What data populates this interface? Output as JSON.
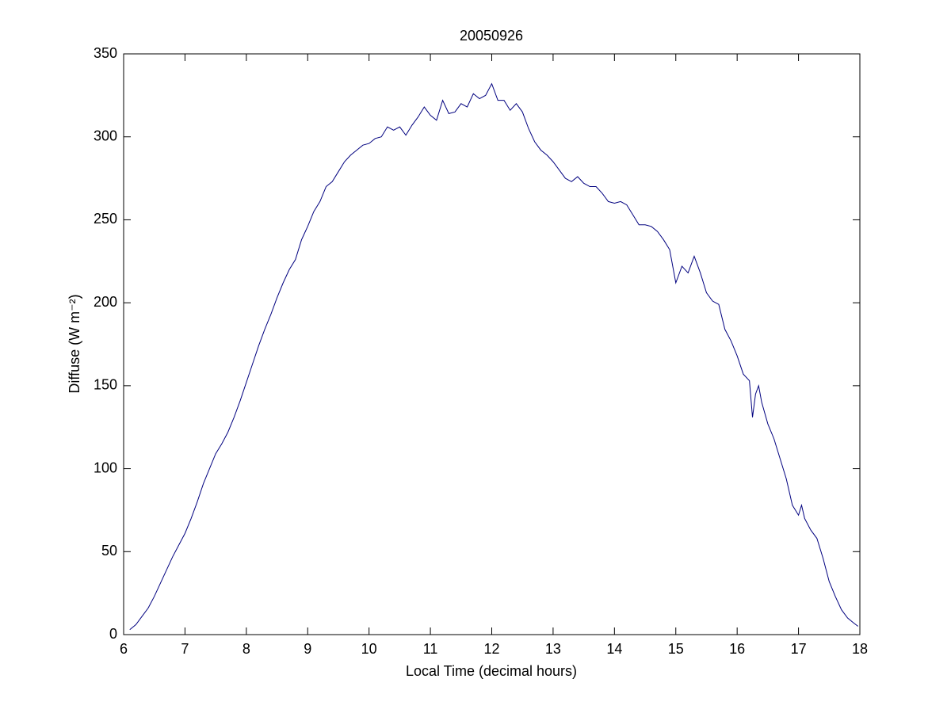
{
  "chart_data": {
    "type": "line",
    "title": "20050926",
    "xlabel": "Local Time (decimal hours)",
    "ylabel": "Diffuse (W m⁻²)",
    "xlim": [
      6,
      18
    ],
    "ylim": [
      0,
      350
    ],
    "xticks": [
      6,
      7,
      8,
      9,
      10,
      11,
      12,
      13,
      14,
      15,
      16,
      17,
      18
    ],
    "yticks": [
      0,
      50,
      100,
      150,
      200,
      250,
      300,
      350
    ],
    "grid": false,
    "series": [
      {
        "color": "#00007f",
        "x": [
          6.1,
          6.2,
          6.3,
          6.4,
          6.5,
          6.6,
          6.7,
          6.8,
          6.9,
          7.0,
          7.1,
          7.2,
          7.3,
          7.4,
          7.5,
          7.6,
          7.7,
          7.8,
          7.9,
          8.0,
          8.1,
          8.2,
          8.3,
          8.4,
          8.5,
          8.6,
          8.7,
          8.8,
          8.9,
          9.0,
          9.1,
          9.2,
          9.3,
          9.4,
          9.5,
          9.6,
          9.7,
          9.8,
          9.9,
          10.0,
          10.1,
          10.2,
          10.3,
          10.4,
          10.5,
          10.6,
          10.7,
          10.8,
          10.9,
          11.0,
          11.1,
          11.2,
          11.3,
          11.4,
          11.5,
          11.6,
          11.7,
          11.8,
          11.9,
          12.0,
          12.1,
          12.2,
          12.3,
          12.4,
          12.5,
          12.6,
          12.7,
          12.8,
          12.9,
          13.0,
          13.1,
          13.2,
          13.3,
          13.4,
          13.5,
          13.6,
          13.7,
          13.8,
          13.9,
          14.0,
          14.1,
          14.2,
          14.3,
          14.4,
          14.5,
          14.6,
          14.7,
          14.8,
          14.9,
          15.0,
          15.1,
          15.2,
          15.3,
          15.4,
          15.5,
          15.6,
          15.7,
          15.8,
          15.9,
          16.0,
          16.1,
          16.2,
          16.25,
          16.3,
          16.35,
          16.4,
          16.5,
          16.6,
          16.7,
          16.8,
          16.9,
          17.0,
          17.05,
          17.1,
          17.2,
          17.3,
          17.4,
          17.5,
          17.6,
          17.7,
          17.8,
          17.9,
          17.97
        ],
        "values": [
          3,
          6,
          11,
          16,
          23,
          31,
          39,
          47,
          54,
          61,
          70,
          80,
          91,
          100,
          109,
          115,
          122,
          131,
          141,
          152,
          163,
          174,
          184,
          193,
          203,
          212,
          220,
          226,
          238,
          246,
          255,
          261,
          270,
          273,
          279,
          285,
          289,
          292,
          295,
          296,
          299,
          300,
          306,
          304,
          306,
          301,
          307,
          312,
          318,
          313,
          310,
          322,
          314,
          315,
          320,
          318,
          326,
          323,
          325,
          332,
          322,
          322,
          316,
          320,
          315,
          305,
          297,
          292,
          289,
          285,
          280,
          275,
          273,
          276,
          272,
          270,
          270,
          266,
          261,
          260,
          261,
          259,
          253,
          247,
          247,
          246,
          243,
          238,
          232,
          212,
          222,
          218,
          228,
          218,
          206,
          201,
          199,
          184,
          177,
          168,
          157,
          153,
          131,
          145,
          150,
          140,
          127,
          118,
          106,
          94,
          78,
          72,
          78,
          70,
          63,
          58,
          46,
          32,
          23,
          15,
          10,
          7,
          5
        ]
      }
    ]
  }
}
